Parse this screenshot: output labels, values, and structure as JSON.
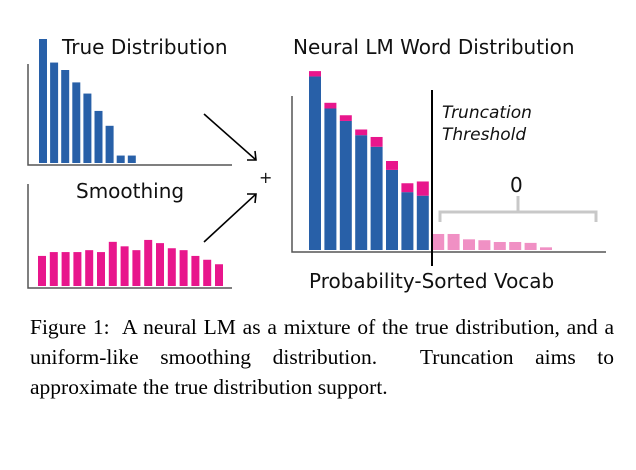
{
  "figure": {
    "true_dist_title": "True Distribution",
    "smoothing_title": "Smoothing",
    "plus_sign": "+",
    "neural_title": "Neural LM Word Distribution",
    "truncation_line1": "Truncation",
    "truncation_line2": "Threshold",
    "bracket_value": "0",
    "xlabel": "Probability-Sorted Vocab"
  },
  "colors": {
    "blue": "#2860a8",
    "magenta": "#e8168c",
    "light_blue": "#93afd6",
    "light_pink": "#f090c4",
    "axis": "#555555",
    "bracket": "#c8c8c8"
  },
  "chart_data": [
    {
      "type": "bar",
      "title": "True Distribution",
      "values": [
        1.0,
        0.81,
        0.75,
        0.65,
        0.56,
        0.42,
        0.3,
        0.06,
        0.06,
        0,
        0,
        0,
        0,
        0,
        0,
        0,
        0,
        0,
        0,
        0,
        0,
        0
      ]
    },
    {
      "type": "bar",
      "title": "Smoothing",
      "values": [
        0.47,
        0.53,
        0.53,
        0.53,
        0.56,
        0.53,
        0.69,
        0.62,
        0.56,
        0.72,
        0.67,
        0.59,
        0.56,
        0.47,
        0.41,
        0.34
      ]
    },
    {
      "type": "bar",
      "title": "Neural LM Word Distribution",
      "xlabel": "Probability-Sorted Vocab",
      "threshold_after_index": 9,
      "series": [
        {
          "values": [
            0.975,
            0.795,
            0.725,
            0.645,
            0.58,
            0.45,
            0.325,
            0.305,
            0.0,
            0.0,
            0.0,
            0.0,
            0.0,
            0.0,
            0.0,
            0.0
          ]
        },
        {
          "values": [
            0.03,
            0.032,
            0.032,
            0.032,
            0.055,
            0.05,
            0.05,
            0.08,
            0.09,
            0.09,
            0.06,
            0.055,
            0.045,
            0.045,
            0.04,
            0.015
          ]
        }
      ]
    }
  ]
}
